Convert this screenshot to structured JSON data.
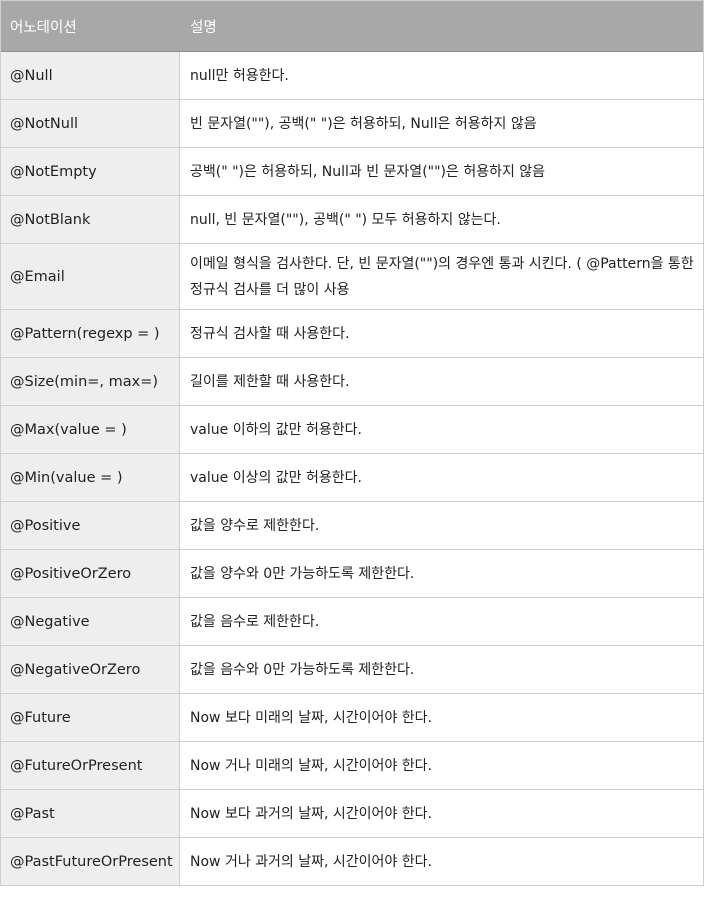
{
  "table": {
    "headers": {
      "annotation": "어노테이션",
      "description": "설명"
    },
    "rows": [
      {
        "annotation": "@Null",
        "description": "null만 허용한다."
      },
      {
        "annotation": "@NotNull",
        "description": "빈 문자열(\"\"), 공백(\" \")은 허용하되, Null은 허용하지 않음"
      },
      {
        "annotation": "@NotEmpty",
        "description": "공백(\" \")은 허용하되, Null과 빈 문자열(\"\")은 허용하지 않음"
      },
      {
        "annotation": "@NotBlank",
        "description": "null, 빈 문자열(\"\"), 공백(\" \") 모두 허용하지 않는다."
      },
      {
        "annotation": "@Email",
        "description": "이메일 형식을 검사한다. 단, 빈 문자열(\"\")의 경우엔 통과 시킨다. ( @Pattern을 통한 정규식 검사를 더 많이 사용"
      },
      {
        "annotation": "@Pattern(regexp = )",
        "description": "정규식 검사할 때 사용한다."
      },
      {
        "annotation": "@Size(min=, max=)",
        "description": "길이를 제한할 때 사용한다."
      },
      {
        "annotation": "@Max(value = )",
        "description": "value 이하의 값만 허용한다."
      },
      {
        "annotation": "@Min(value = )",
        "description": "value 이상의 값만 허용한다."
      },
      {
        "annotation": "@Positive",
        "description": "값을 양수로 제한한다."
      },
      {
        "annotation": "@PositiveOrZero",
        "description": "값을 양수와 0만 가능하도록 제한한다."
      },
      {
        "annotation": "@Negative",
        "description": "값을 음수로 제한한다."
      },
      {
        "annotation": "@NegativeOrZero",
        "description": "값을 음수와 0만 가능하도록 제한한다."
      },
      {
        "annotation": "@Future",
        "description": "Now 보다 미래의 날짜, 시간이어야 한다."
      },
      {
        "annotation": "@FutureOrPresent",
        "description": "Now 거나 미래의 날짜, 시간이어야 한다."
      },
      {
        "annotation": "@Past",
        "description": "Now 보다 과거의 날짜, 시간이어야 한다."
      },
      {
        "annotation": "@PastFutureOrPresent",
        "description": "Now 거나 과거의 날짜, 시간이어야 한다."
      }
    ]
  }
}
